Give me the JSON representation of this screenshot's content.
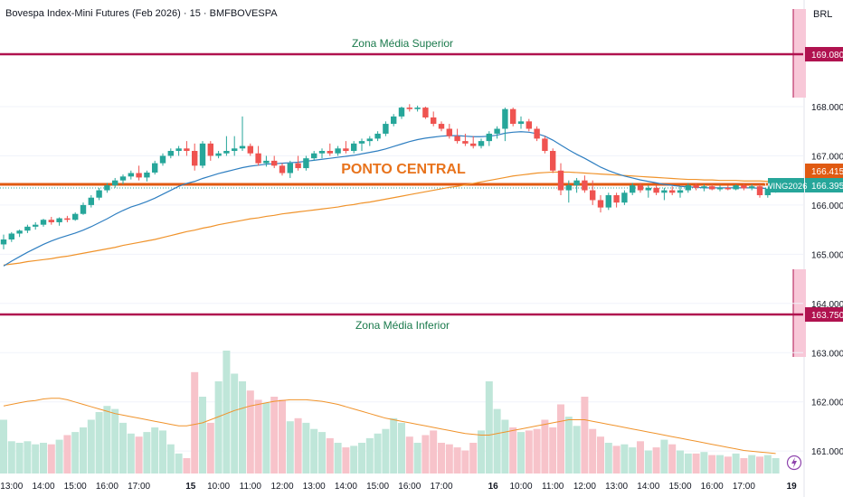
{
  "header": {
    "title": "Bovespa Index-Mini Futures (Feb 2026) · 15 · BMFBOVESPA",
    "currency": "BRL"
  },
  "colors": {
    "up": "#26a69a",
    "down": "#ef5350",
    "ma_blue": "#2f7fc1",
    "ma_orange": "#f0932b",
    "zone_line": "#b0124f",
    "zone_fill": "#f8c8d8",
    "central_line": "#e05a12",
    "zone_text": "#1a7a4c",
    "central_text": "#e8731c"
  },
  "annotations": {
    "zone_upper": "Zona Média Superior",
    "zone_lower": "Zona Média Inferior",
    "central": "PONTO CENTRAL"
  },
  "chart_data": {
    "type": "candlestick",
    "symbol": "WING2026",
    "y_ticks": [
      168000,
      167000,
      166000,
      165000,
      164000,
      163000,
      162000,
      161000
    ],
    "y_tick_labels": [
      "168.000",
      "167.000",
      "166.000",
      "165.000",
      "164.000",
      "163.000",
      "162.000",
      "161.000"
    ],
    "price_tags": [
      {
        "label": "169.080",
        "value": 169080,
        "kind": "zone"
      },
      {
        "label": "166.415",
        "value": 166415,
        "kind": "central"
      },
      {
        "label": "166.395",
        "value": 166395,
        "kind": "last",
        "symbol": "WING2026"
      },
      {
        "label": "163.750",
        "value": 163750,
        "kind": "zone"
      }
    ],
    "levels": [
      {
        "name": "Zona Média Superior",
        "value": 169080
      },
      {
        "name": "Ponto Central",
        "value": 166415
      },
      {
        "name": "Zona Média Inferior",
        "value": 163750
      }
    ],
    "x_labels": [
      "13:00",
      "14:00",
      "15:00",
      "16:00",
      "17:00",
      "15",
      "10:00",
      "11:00",
      "12:00",
      "13:00",
      "14:00",
      "15:00",
      "16:00",
      "17:00",
      "16",
      "10:00",
      "11:00",
      "12:00",
      "13:00",
      "14:00",
      "15:00",
      "16:00",
      "17:00",
      "19"
    ],
    "x_label_bars": [
      1,
      5,
      9,
      13,
      17,
      23.5,
      27,
      31,
      35,
      39,
      43,
      47,
      51,
      55,
      61.5,
      65,
      69,
      73,
      77,
      81,
      85,
      89,
      93,
      99
    ],
    "candles": [
      [
        165200,
        165400,
        165100,
        165300
      ],
      [
        165300,
        165450,
        165250,
        165420
      ],
      [
        165420,
        165500,
        165350,
        165480
      ],
      [
        165480,
        165600,
        165430,
        165560
      ],
      [
        165560,
        165650,
        165500,
        165600
      ],
      [
        165600,
        165720,
        165560,
        165700
      ],
      [
        165700,
        165760,
        165600,
        165650
      ],
      [
        165650,
        165750,
        165580,
        165730
      ],
      [
        165730,
        165780,
        165650,
        165700
      ],
      [
        165700,
        165850,
        165680,
        165820
      ],
      [
        165820,
        166050,
        165800,
        166000
      ],
      [
        166000,
        166200,
        165950,
        166150
      ],
      [
        166150,
        166350,
        166100,
        166300
      ],
      [
        166300,
        166450,
        166250,
        166400
      ],
      [
        166400,
        166550,
        166350,
        166500
      ],
      [
        166500,
        166620,
        166420,
        166580
      ],
      [
        166580,
        166700,
        166520,
        166650
      ],
      [
        166650,
        166800,
        166500,
        166560
      ],
      [
        166560,
        166700,
        166480,
        166660
      ],
      [
        166660,
        166900,
        166620,
        166850
      ],
      [
        166850,
        167050,
        166800,
        167000
      ],
      [
        167000,
        167150,
        166950,
        167100
      ],
      [
        167100,
        167200,
        167000,
        167150
      ],
      [
        167150,
        167300,
        167000,
        167100
      ],
      [
        167100,
        167250,
        166700,
        166800
      ],
      [
        166800,
        167300,
        166750,
        167250
      ],
      [
        167250,
        167300,
        166900,
        167000
      ],
      [
        167000,
        167100,
        166950,
        167050
      ],
      [
        167050,
        167400,
        167000,
        167100
      ],
      [
        167100,
        167400,
        167000,
        167150
      ],
      [
        167150,
        167800,
        167100,
        167200
      ],
      [
        167200,
        167250,
        167000,
        167050
      ],
      [
        167050,
        167200,
        166800,
        166850
      ],
      [
        166850,
        167000,
        166780,
        166900
      ],
      [
        166900,
        167000,
        166750,
        166800
      ],
      [
        166800,
        166850,
        166600,
        166650
      ],
      [
        166650,
        166900,
        166550,
        166850
      ],
      [
        166850,
        167000,
        166700,
        166750
      ],
      [
        166750,
        167000,
        166700,
        166950
      ],
      [
        166950,
        167100,
        166900,
        167050
      ],
      [
        167050,
        167150,
        166950,
        167100
      ],
      [
        167100,
        167250,
        167000,
        167050
      ],
      [
        167050,
        167200,
        167000,
        167150
      ],
      [
        167150,
        167300,
        167050,
        167100
      ],
      [
        167100,
        167300,
        167050,
        167250
      ],
      [
        167250,
        167350,
        167100,
        167300
      ],
      [
        167300,
        167400,
        167200,
        167350
      ],
      [
        167350,
        167500,
        167300,
        167450
      ],
      [
        167450,
        167700,
        167400,
        167650
      ],
      [
        167650,
        167850,
        167600,
        167800
      ],
      [
        167800,
        168000,
        167750,
        167980
      ],
      [
        167980,
        168050,
        167900,
        167950
      ],
      [
        167950,
        168020,
        167900,
        167980
      ],
      [
        167980,
        168000,
        167750,
        167780
      ],
      [
        167780,
        167900,
        167600,
        167650
      ],
      [
        167650,
        167700,
        167500,
        167550
      ],
      [
        167550,
        167650,
        167350,
        167400
      ],
      [
        167400,
        167550,
        167250,
        167300
      ],
      [
        167300,
        167450,
        167200,
        167250
      ],
      [
        167250,
        167400,
        167150,
        167200
      ],
      [
        167200,
        167350,
        167150,
        167300
      ],
      [
        167300,
        167500,
        167200,
        167450
      ],
      [
        167450,
        167600,
        167350,
        167550
      ],
      [
        167550,
        167980,
        167300,
        167950
      ],
      [
        167950,
        167980,
        167600,
        167650
      ],
      [
        167650,
        167800,
        167550,
        167700
      ],
      [
        167700,
        167750,
        167500,
        167550
      ],
      [
        167550,
        167600,
        167300,
        167350
      ],
      [
        167350,
        167400,
        167050,
        167100
      ],
      [
        167100,
        167150,
        166650,
        166700
      ],
      [
        166700,
        166850,
        166200,
        166300
      ],
      [
        166300,
        166500,
        166050,
        166400
      ],
      [
        166400,
        166550,
        166250,
        166500
      ],
      [
        166500,
        166600,
        166250,
        166300
      ],
      [
        166300,
        166500,
        166000,
        166100
      ],
      [
        166100,
        166200,
        165850,
        165950
      ],
      [
        165950,
        166250,
        165900,
        166200
      ],
      [
        166200,
        166250,
        165950,
        166050
      ],
      [
        166050,
        166300,
        166000,
        166250
      ],
      [
        166250,
        166450,
        166200,
        166400
      ],
      [
        166400,
        166450,
        166250,
        166300
      ],
      [
        166300,
        166400,
        166150,
        166350
      ],
      [
        166350,
        166400,
        166200,
        166250
      ],
      [
        166250,
        166350,
        166100,
        166300
      ],
      [
        166300,
        166380,
        166200,
        166250
      ],
      [
        166250,
        166380,
        166150,
        166300
      ],
      [
        166300,
        166450,
        166250,
        166400
      ],
      [
        166400,
        166450,
        166300,
        166350
      ],
      [
        166350,
        166420,
        166280,
        166380
      ],
      [
        166380,
        166420,
        166300,
        166320
      ],
      [
        166320,
        166400,
        166280,
        166350
      ],
      [
        166350,
        166400,
        166300,
        166320
      ],
      [
        166320,
        166420,
        166300,
        166400
      ],
      [
        166400,
        166430,
        166300,
        166340
      ],
      [
        166340,
        166420,
        166300,
        166380
      ],
      [
        166380,
        166420,
        166150,
        166200
      ],
      [
        166200,
        166380,
        166150,
        166350
      ],
      [
        166350,
        166400,
        166250,
        166395
      ]
    ],
    "ma_blue": [
      164760,
      164860,
      164950,
      165040,
      165120,
      165200,
      165270,
      165330,
      165380,
      165430,
      165490,
      165560,
      165640,
      165720,
      165810,
      165890,
      165960,
      166010,
      166070,
      166140,
      166220,
      166300,
      166380,
      166440,
      166480,
      166540,
      166590,
      166640,
      166680,
      166720,
      166760,
      166790,
      166810,
      166830,
      166840,
      166850,
      166860,
      166870,
      166890,
      166910,
      166930,
      166950,
      166970,
      166990,
      167010,
      167040,
      167070,
      167100,
      167140,
      167190,
      167240,
      167290,
      167330,
      167360,
      167380,
      167400,
      167410,
      167410,
      167400,
      167390,
      167390,
      167400,
      167420,
      167460,
      167480,
      167490,
      167480,
      167450,
      167400,
      167320,
      167220,
      167120,
      167030,
      166950,
      166860,
      166770,
      166700,
      166640,
      166590,
      166550,
      166510,
      166480,
      166450,
      166420,
      166400,
      166380,
      166370,
      166360,
      166350,
      166350,
      166350,
      166350,
      166350,
      166350,
      166350,
      166340,
      166340,
      166340
    ],
    "ma_orange": [
      164780,
      164800,
      164820,
      164850,
      164870,
      164890,
      164910,
      164940,
      164960,
      164990,
      165020,
      165050,
      165080,
      165110,
      165140,
      165180,
      165210,
      165240,
      165270,
      165300,
      165340,
      165380,
      165420,
      165460,
      165490,
      165530,
      165560,
      165600,
      165630,
      165660,
      165690,
      165720,
      165740,
      165770,
      165790,
      165820,
      165840,
      165860,
      165880,
      165900,
      165920,
      165940,
      165960,
      165990,
      166010,
      166040,
      166060,
      166090,
      166120,
      166150,
      166180,
      166210,
      166240,
      166270,
      166300,
      166330,
      166360,
      166380,
      166410,
      166440,
      166470,
      166500,
      166530,
      166560,
      166590,
      166610,
      166630,
      166650,
      166660,
      166670,
      166670,
      166670,
      166660,
      166650,
      166640,
      166630,
      166620,
      166610,
      166600,
      166590,
      166580,
      166570,
      166560,
      166550,
      166540,
      166530,
      166520,
      166520,
      166510,
      166510,
      166500,
      166500,
      166500,
      166490,
      166490,
      166490,
      166480,
      166480
    ],
    "volume": [
      70,
      42,
      40,
      42,
      38,
      40,
      38,
      44,
      50,
      54,
      60,
      70,
      80,
      88,
      84,
      66,
      52,
      48,
      54,
      60,
      56,
      38,
      26,
      20,
      132,
      100,
      66,
      120,
      160,
      130,
      120,
      108,
      96,
      92,
      100,
      96,
      68,
      72,
      66,
      58,
      54,
      46,
      40,
      34,
      36,
      40,
      46,
      52,
      58,
      72,
      66,
      48,
      40,
      50,
      56,
      40,
      38,
      34,
      30,
      40,
      56,
      120,
      84,
      70,
      60,
      54,
      56,
      58,
      70,
      60,
      90,
      74,
      62,
      100,
      58,
      48,
      40,
      36,
      38,
      34,
      42,
      30,
      34,
      44,
      38,
      30,
      26,
      26,
      28,
      24,
      24,
      22,
      26,
      20,
      24,
      22,
      24,
      20
    ],
    "volume_ma": [
      88,
      90,
      92,
      94,
      95,
      97,
      98,
      98,
      96,
      93,
      90,
      87,
      84,
      81,
      78,
      76,
      74,
      72,
      70,
      68,
      66,
      64,
      62,
      62,
      64,
      66,
      70,
      74,
      78,
      82,
      85,
      88,
      90,
      92,
      94,
      95,
      96,
      96,
      96,
      95,
      94,
      92,
      90,
      87,
      84,
      81,
      78,
      75,
      72,
      70,
      68,
      66,
      64,
      62,
      60,
      58,
      56,
      54,
      52,
      51,
      50,
      50,
      52,
      54,
      56,
      58,
      60,
      62,
      64,
      66,
      68,
      70,
      70,
      70,
      68,
      66,
      64,
      62,
      60,
      58,
      56,
      54,
      52,
      50,
      48,
      46,
      44,
      42,
      40,
      38,
      36,
      34,
      32,
      30,
      29,
      28,
      27,
      26
    ]
  }
}
